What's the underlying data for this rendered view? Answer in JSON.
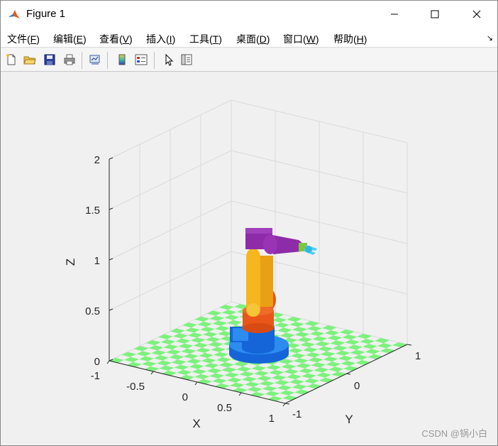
{
  "window": {
    "title": "Figure 1"
  },
  "menu": {
    "file": {
      "label": "文件(",
      "key": "F",
      "end": ")"
    },
    "edit": {
      "label": "编辑(",
      "key": "E",
      "end": ")"
    },
    "view": {
      "label": "查看(",
      "key": "V",
      "end": ")"
    },
    "insert": {
      "label": "插入(",
      "key": "I",
      "end": ")"
    },
    "tools": {
      "label": "工具(",
      "key": "T",
      "end": ")"
    },
    "desktop": {
      "label": "桌面(",
      "key": "D",
      "end": ")"
    },
    "window": {
      "label": "窗口(",
      "key": "W",
      "end": ")"
    },
    "help": {
      "label": "帮助(",
      "key": "H",
      "end": ")"
    }
  },
  "toolbar": {
    "icons": [
      "new-figure-icon",
      "open-file-icon",
      "save-icon",
      "print-icon",
      "link-plot-icon",
      "colorbar-icon",
      "legend-icon",
      "select-arrow-icon",
      "property-inspector-icon"
    ]
  },
  "axes": {
    "xlabel": "X",
    "ylabel": "Y",
    "zlabel": "Z",
    "z_ticks": [
      "0",
      "0.5",
      "1",
      "1.5",
      "2"
    ],
    "x_ticks": [
      "-1",
      "-0.5",
      "0",
      "0.5",
      "1"
    ],
    "y_ticks": [
      "-1",
      "0",
      "1"
    ]
  },
  "scene": {
    "floor_color": "#7CF27C",
    "link_colors": {
      "base": "#1565D8",
      "base_light": "#2C8CF0",
      "link1": "#E8561A",
      "link2": "#F7B51E",
      "link3": "#8E2BA8",
      "tool": "#4FD0F0",
      "joint": "#7CC83C"
    }
  },
  "watermark": "CSDN @锅小白"
}
